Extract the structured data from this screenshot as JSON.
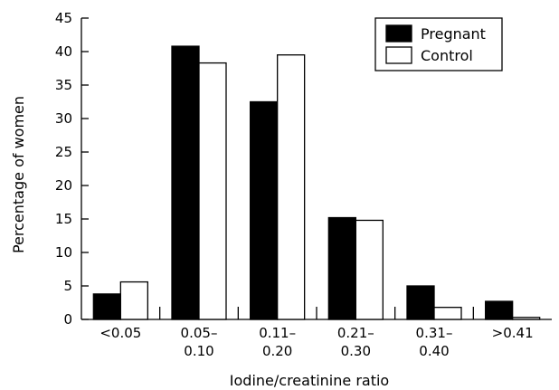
{
  "chart_data": {
    "type": "bar",
    "xlabel": "Iodine/creatinine ratio",
    "ylabel": "Percentage of women",
    "ylim": [
      0,
      45
    ],
    "yticks": [
      "0",
      "5",
      "10",
      "15",
      "20",
      "25",
      "30",
      "35",
      "40",
      "45"
    ],
    "categories": [
      {
        "line1": "<0.05",
        "line2": ""
      },
      {
        "line1": "0.05–",
        "line2": "0.10"
      },
      {
        "line1": "0.11–",
        "line2": "0.20"
      },
      {
        "line1": "0.21–",
        "line2": "0.30"
      },
      {
        "line1": "0.31–",
        "line2": "0.40"
      },
      {
        "line1": ">0.41",
        "line2": ""
      }
    ],
    "series": [
      {
        "name": "Pregnant",
        "color": "#000000",
        "values": [
          3.8,
          40.8,
          32.5,
          15.2,
          5.0,
          2.7
        ]
      },
      {
        "name": "Control",
        "color": "#ffffff",
        "values": [
          5.6,
          38.3,
          39.5,
          14.8,
          1.8,
          0.3
        ]
      }
    ],
    "legend_position": "top-right",
    "grid": false
  }
}
